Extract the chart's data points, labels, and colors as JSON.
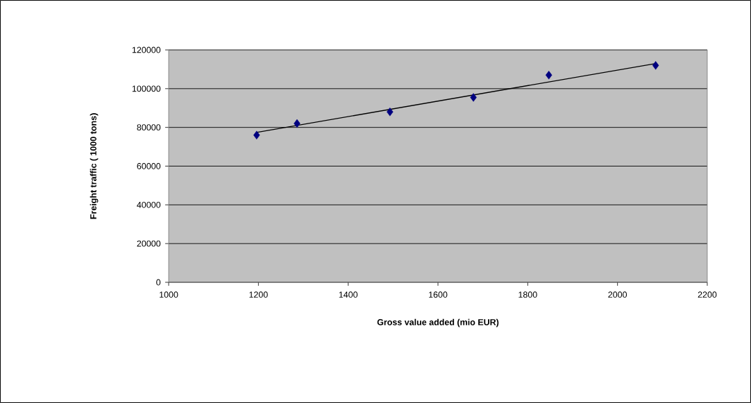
{
  "chart_data": {
    "type": "scatter",
    "xlabel": "Gross value added (mio EUR)",
    "ylabel": "Freight traffic ( 1000 tons)",
    "series": [
      {
        "color": "#000080",
        "marker": "diamond",
        "x": [
          1196,
          1286,
          1493,
          1679,
          1847,
          2085
        ],
        "values": [
          76000,
          82000,
          88000,
          95500,
          107000,
          112000
        ]
      },
      {
        "type": "line",
        "color": "#000000",
        "marker": "none",
        "line_style": "solid",
        "x": [
          1196,
          2085
        ],
        "values": [
          77400,
          113000
        ]
      }
    ],
    "xlim": [
      1000,
      2200
    ],
    "xticks": [
      1000,
      1200,
      1400,
      1600,
      1800,
      2000,
      2200
    ],
    "ylim": [
      0,
      120000
    ],
    "yticks": [
      0,
      20000,
      40000,
      60000,
      80000,
      100000,
      120000
    ],
    "grid": "y"
  }
}
